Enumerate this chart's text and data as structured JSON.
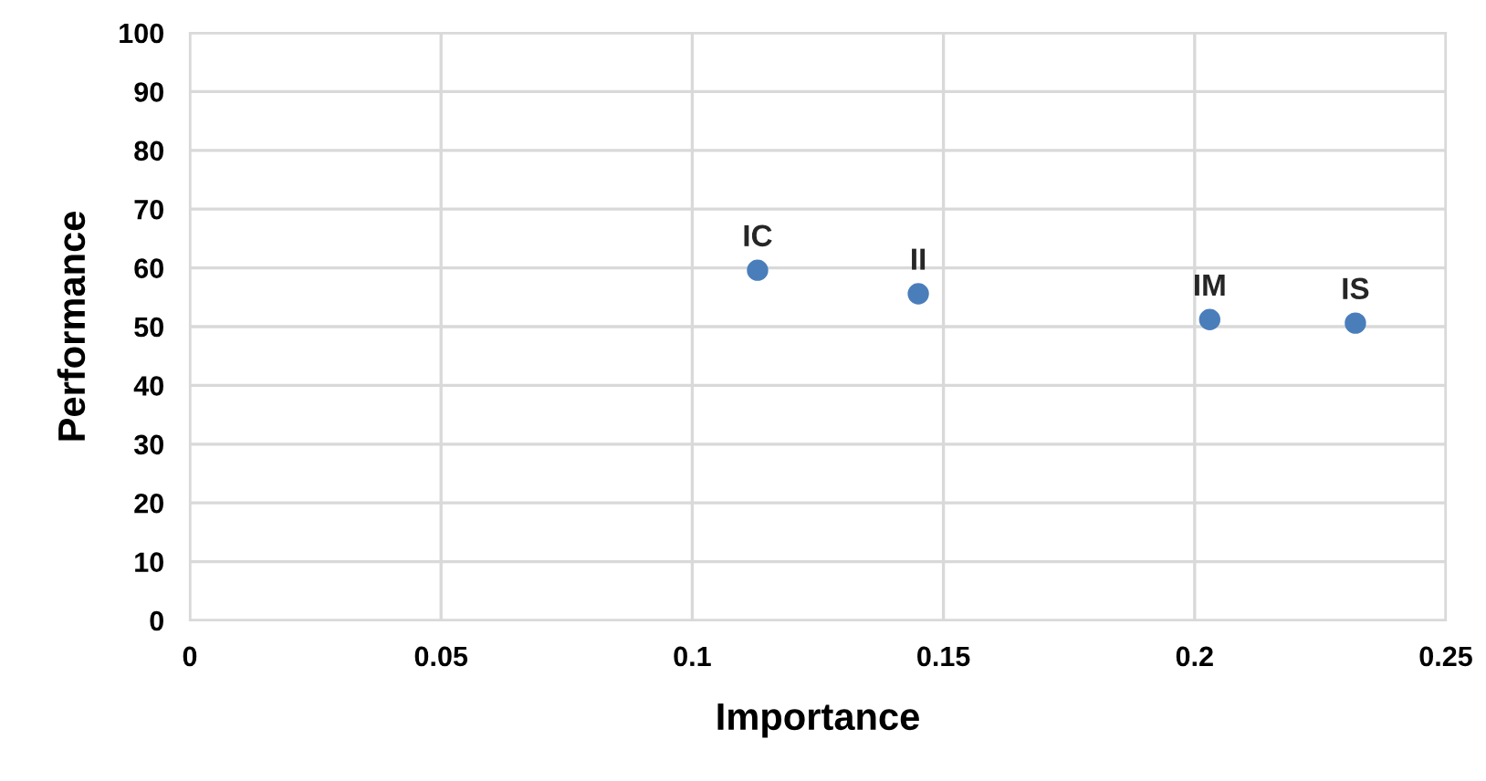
{
  "chart_data": {
    "type": "scatter",
    "xlabel": "Importance",
    "ylabel": "Performance",
    "x": [
      0.113,
      0.145,
      0.203,
      0.232
    ],
    "series": [
      {
        "color": "#4a7ebb",
        "values": [
          59.6,
          55.6,
          51.2,
          50.6
        ]
      }
    ],
    "annotations": [
      {
        "text": "IC",
        "x": 0.113,
        "y": 59.6
      },
      {
        "text": "II",
        "x": 0.145,
        "y": 55.6
      },
      {
        "text": "IM",
        "x": 0.203,
        "y": 51.2
      },
      {
        "text": "IS",
        "x": 0.232,
        "y": 50.6
      }
    ],
    "xlim": [
      0,
      0.25
    ],
    "xticks": [
      0,
      0.05,
      0.1,
      0.15,
      0.2,
      0.25
    ],
    "ylim": [
      0,
      100
    ],
    "yticks": [
      0,
      10,
      20,
      30,
      40,
      50,
      60,
      70,
      80,
      90,
      100
    ],
    "grid": true,
    "marker": "circle"
  }
}
